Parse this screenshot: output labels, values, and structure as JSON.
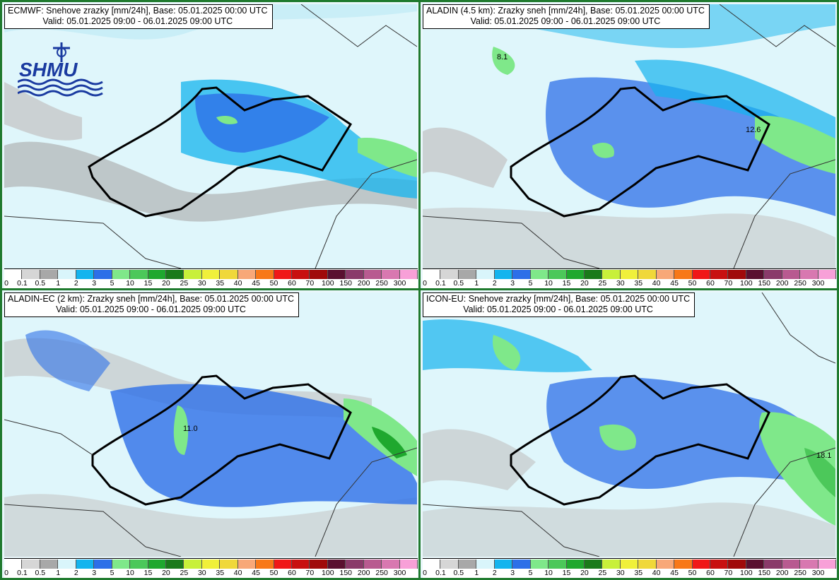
{
  "panels": [
    {
      "title_line1": "ECMWF: Snehove zrazky [mm/24h], Base: 05.01.2025 00:00 UTC",
      "title_line2": "Valid: 05.01.2025 09:00 - 06.01.2025 09:00 UTC",
      "labels": []
    },
    {
      "title_line1": "ALADIN (4.5 km): Zrazky sneh [mm/24h], Base: 05.01.2025 00:00 UTC",
      "title_line2": "Valid: 05.01.2025 09:00 - 06.01.2025 09:00 UTC",
      "labels": [
        "8.1",
        "12.6"
      ]
    },
    {
      "title_line1": "ALADIN-EC (2 km): Zrazky sneh [mm/24h], Base: 05.01.2025 00:00 UTC",
      "title_line2": "Valid: 05.01.2025 09:00 - 06.01.2025 09:00 UTC",
      "labels": [
        "11.0"
      ]
    },
    {
      "title_line1": "ICON-EU: Snehove zrazky [mm/24h], Base: 05.01.2025 00:00 UTC",
      "title_line2": "Valid: 05.01.2025 09:00 - 06.01.2025 09:00 UTC",
      "labels": [
        "18.1"
      ]
    }
  ],
  "logo_text": "SHMU",
  "legend": {
    "ticks": [
      "0",
      "0.1",
      "0.5",
      "1",
      "2",
      "3",
      "5",
      "10",
      "15",
      "20",
      "25",
      "30",
      "35",
      "40",
      "45",
      "50",
      "60",
      "70",
      "100",
      "150",
      "200",
      "250",
      "300"
    ],
    "colors": [
      "#ffffff",
      "#d6d6d6",
      "#a8a8a8",
      "#d9f5fb",
      "#14b4ee",
      "#2d6fe8",
      "#7fe88a",
      "#4cc85a",
      "#1fa82e",
      "#1a7a1a",
      "#c8f03a",
      "#f0f03a",
      "#f0d83a",
      "#f8a878",
      "#f87818",
      "#f01818",
      "#c81010",
      "#a00a0a",
      "#5a1030",
      "#8a3a6a",
      "#b85a90",
      "#d878b0",
      "#f8a0d8"
    ]
  }
}
